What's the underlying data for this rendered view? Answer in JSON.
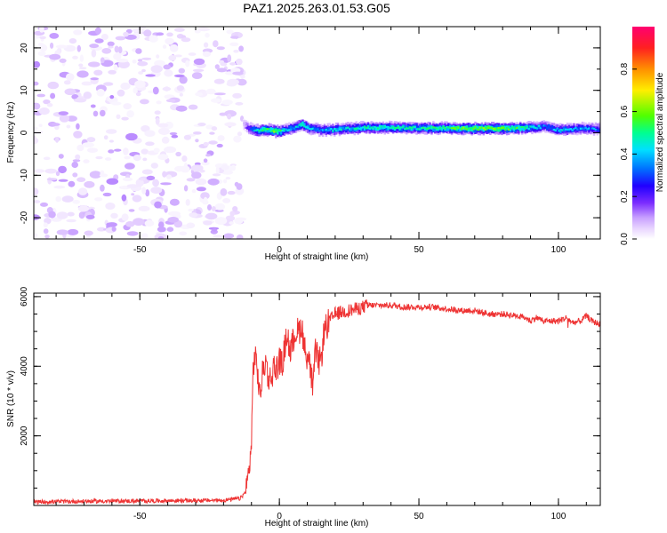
{
  "title": "PAZ1.2025.263.01.53.G05",
  "chart_data": [
    {
      "type": "heatmap",
      "title": "PAZ1.2025.263.01.53.G05",
      "xlabel": "Height of straight line (km)",
      "ylabel": "Frequency (Hz)",
      "xlim": [
        -88,
        115
      ],
      "ylim": [
        -25,
        25
      ],
      "xticks": [
        -50,
        0,
        50,
        100
      ],
      "yticks": [
        -20,
        -10,
        0,
        10,
        20
      ],
      "colorbar": {
        "label": "Normalized spectral amplitude",
        "range": [
          0,
          1
        ],
        "ticks": [
          0.0,
          0.2,
          0.4,
          0.6,
          0.8
        ],
        "colormap": [
          "#ffffff",
          "#e8d4ff",
          "#c8a0ff",
          "#7b2cff",
          "#3000ff",
          "#0050ff",
          "#00e0ff",
          "#00ff80",
          "#70ff00",
          "#ffee00",
          "#ff8800",
          "#ff2020",
          "#ff0070"
        ]
      },
      "noise_region": {
        "x_start": -88,
        "x_end": -13,
        "y_min": -25,
        "y_max": 25,
        "amplitude_range": [
          0.0,
          0.15
        ]
      },
      "signal_track": {
        "x": [
          -13,
          -11,
          -8,
          -5,
          -2,
          0,
          3,
          5,
          8,
          10,
          13,
          15,
          20,
          25,
          30,
          40,
          50,
          60,
          70,
          80,
          90,
          95,
          100,
          105,
          110,
          115
        ],
        "frequency": [
          2,
          1,
          0.5,
          0.8,
          0.4,
          0.3,
          0.8,
          1.2,
          2,
          1.2,
          0.8,
          0.6,
          0.8,
          1,
          1.2,
          1.2,
          1.1,
          1.1,
          1,
          1,
          1.2,
          1.5,
          0.6,
          0.9,
          1.1,
          0.8
        ],
        "amplitude": [
          0.15,
          0.35,
          0.55,
          0.6,
          0.65,
          0.6,
          0.45,
          0.5,
          0.55,
          0.5,
          0.45,
          0.45,
          0.5,
          0.5,
          0.55,
          0.55,
          0.55,
          0.6,
          0.65,
          0.65,
          0.55,
          0.4,
          0.5,
          0.45,
          0.45,
          0.4
        ]
      }
    },
    {
      "type": "line",
      "xlabel": "Height of straight line (km)",
      "ylabel": "SNR (10 * v/v)",
      "xlim": [
        -88,
        115
      ],
      "ylim": [
        0,
        6100
      ],
      "xticks": [
        -50,
        0,
        50,
        100
      ],
      "yticks": [
        2000,
        4000,
        6000
      ],
      "color": "#ee3333",
      "series": [
        {
          "name": "SNR",
          "x": [
            -88,
            -70,
            -50,
            -30,
            -20,
            -14,
            -12,
            -11,
            -10,
            -9.5,
            -9,
            -8,
            -7,
            -6,
            -5,
            -4,
            -3,
            -2,
            -1,
            0,
            1,
            2,
            3,
            4,
            5,
            6,
            7,
            8,
            9,
            10,
            11,
            12,
            13,
            14,
            15,
            16,
            18,
            20,
            22,
            25,
            28,
            30,
            32,
            35,
            40,
            45,
            50,
            55,
            60,
            65,
            70,
            75,
            80,
            85,
            88,
            90,
            92,
            95,
            100,
            103,
            105,
            108,
            110,
            112,
            115
          ],
          "y": [
            100,
            120,
            130,
            140,
            150,
            200,
            400,
            900,
            1800,
            3700,
            4300,
            4000,
            3100,
            3800,
            4200,
            3700,
            3600,
            4000,
            3900,
            4200,
            4000,
            4600,
            4900,
            4300,
            4800,
            5000,
            5000,
            5200,
            4500,
            4300,
            4000,
            3300,
            4500,
            4100,
            4200,
            5000,
            5300,
            5500,
            5550,
            5600,
            5650,
            5700,
            5750,
            5750,
            5750,
            5700,
            5700,
            5700,
            5650,
            5600,
            5600,
            5500,
            5500,
            5450,
            5400,
            5300,
            5400,
            5300,
            5300,
            5400,
            5250,
            5300,
            5450,
            5300,
            5200
          ]
        }
      ]
    }
  ]
}
